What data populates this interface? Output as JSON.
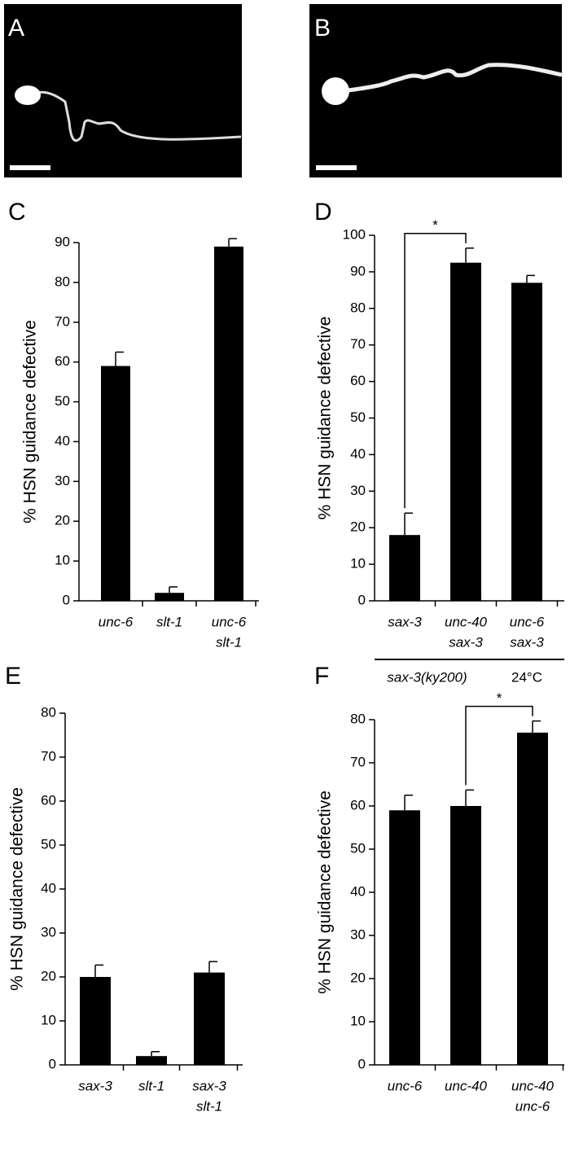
{
  "image_panels": [
    {
      "label": "A"
    },
    {
      "label": "B"
    }
  ],
  "chart_data": [
    {
      "type": "bar",
      "panel": "C",
      "y_label": "% HSN guidance defective",
      "categories": [
        [
          "unc-6"
        ],
        [
          "slt-1"
        ],
        [
          "unc-6",
          "slt-1"
        ]
      ],
      "values": [
        59,
        2,
        89
      ],
      "errors": [
        3.5,
        1.5,
        2
      ],
      "color": "#000000",
      "ylim": [
        0,
        90
      ],
      "yticks": [
        0,
        10,
        20,
        30,
        40,
        50,
        60,
        70,
        80,
        90
      ]
    },
    {
      "type": "bar",
      "panel": "D",
      "y_label": "% HSN guidance defective",
      "categories": [
        [
          "sax-3"
        ],
        [
          "unc-40",
          "sax-3"
        ],
        [
          "unc-6",
          "sax-3"
        ]
      ],
      "values": [
        18,
        92.5,
        87
      ],
      "errors": [
        6,
        4,
        2
      ],
      "color": "#000000",
      "ylim": [
        0,
        100
      ],
      "yticks": [
        0,
        10,
        20,
        30,
        40,
        50,
        60,
        70,
        80,
        90,
        100
      ],
      "significance": {
        "between": [
          0,
          1
        ],
        "label": "*"
      },
      "group_labels": [
        "sax-3(ky200)",
        "24°C"
      ]
    },
    {
      "type": "bar",
      "panel": "E",
      "y_label": "% HSN guidance defective",
      "categories": [
        [
          "sax-3"
        ],
        [
          "slt-1"
        ],
        [
          "sax-3",
          "slt-1"
        ]
      ],
      "values": [
        20,
        2,
        21
      ],
      "errors": [
        2.7,
        1,
        2.5
      ],
      "color": "#000000",
      "ylim": [
        0,
        80
      ],
      "yticks": [
        0,
        10,
        20,
        30,
        40,
        50,
        60,
        70,
        80
      ]
    },
    {
      "type": "bar",
      "panel": "F",
      "y_label": "% HSN guidance defective",
      "categories": [
        [
          "unc-6"
        ],
        [
          "unc-40"
        ],
        [
          "unc-40",
          "unc-6"
        ]
      ],
      "values": [
        59,
        60,
        77
      ],
      "errors": [
        3.5,
        3.7,
        2.7
      ],
      "color": "#000000",
      "ylim": [
        0,
        80
      ],
      "yticks": [
        0,
        10,
        20,
        30,
        40,
        50,
        60,
        70,
        80
      ],
      "significance": {
        "between": [
          1,
          2
        ],
        "label": "*"
      }
    }
  ]
}
